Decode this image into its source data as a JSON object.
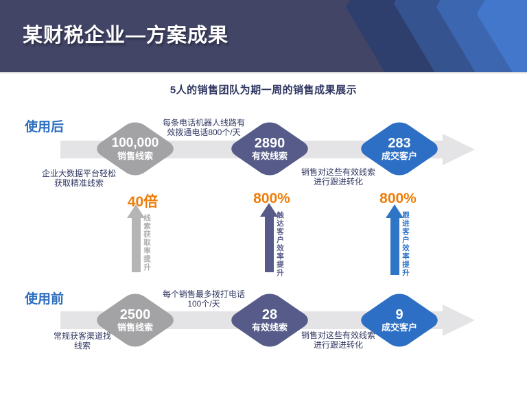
{
  "slide": {
    "title": "某财税企业—方案成果",
    "subtitle": "5人的销售团队为期一周的销售成果展示"
  },
  "colors": {
    "header_bg": "#424566",
    "header_deco_blues": [
      "#2e3f6d",
      "#35538f",
      "#3c67b0",
      "#4377cb"
    ],
    "row_label_blue": "#2e6fc0",
    "navy_text": "#2f3660",
    "band_gray": "#e4e4e6",
    "diamond_gray": "#a3a3a5",
    "diamond_slate": "#565b89",
    "diamond_blue": "#2c6fc4",
    "gain_orange": "#ee7d09",
    "arrow_gray": "#b5b5b5"
  },
  "after_row": {
    "label": "使用后",
    "note_mid": "每条电话机器人线路有\n效拨通电话800个/天",
    "note_left": "企业大数据平台轻松\n获取精准线索",
    "note_right": "销售对这些有效线索\n进行跟进转化",
    "nodes": [
      {
        "value": "100,000",
        "label": "销售线索"
      },
      {
        "value": "2890",
        "label": "有效线索"
      },
      {
        "value": "283",
        "label": "成交客户"
      }
    ]
  },
  "gains": [
    {
      "value": "40倍",
      "label": "线索获取率提升"
    },
    {
      "value": "800%",
      "label": "触达客户效率提升"
    },
    {
      "value": "800%",
      "label": "跟进客户效率提升"
    }
  ],
  "before_row": {
    "label": "使用前",
    "note_mid": "每个销售最多拨打电话\n100个/天",
    "note_left": "常规获客渠道找\n线索",
    "note_right": "销售对这些有效线索\n进行跟进转化",
    "nodes": [
      {
        "value": "2500",
        "label": "销售线索"
      },
      {
        "value": "28",
        "label": "有效线索"
      },
      {
        "value": "9",
        "label": "成交客户"
      }
    ]
  }
}
